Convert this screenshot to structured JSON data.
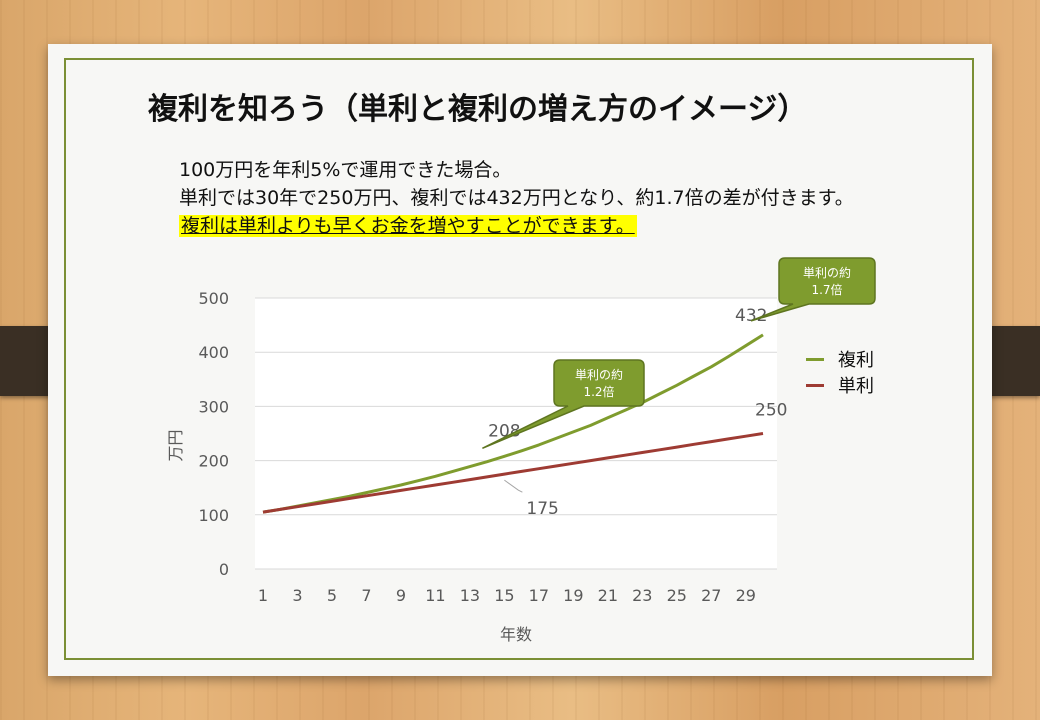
{
  "slide": {
    "title": "複利を知ろう（単利と複利の増え方のイメージ）",
    "line1": "100万円を年利5%で運用できた場合。",
    "line2": "単利では30年で250万円、複利では432万円となり、約1.7倍の差が付きます。",
    "line3": "複利は単利よりも早くお金を増やすことができます。"
  },
  "chart_data": {
    "type": "line",
    "xlabel": "年数",
    "ylabel": "万円",
    "ylim": [
      0,
      500
    ],
    "yticks": [
      "0",
      "100",
      "200",
      "300",
      "400",
      "500"
    ],
    "xticks": [
      "1",
      "3",
      "5",
      "7",
      "9",
      "11",
      "13",
      "15",
      "17",
      "19",
      "21",
      "23",
      "25",
      "27",
      "29"
    ],
    "x": [
      1,
      2,
      3,
      4,
      5,
      6,
      7,
      8,
      9,
      10,
      11,
      12,
      13,
      14,
      15,
      16,
      17,
      18,
      19,
      20,
      21,
      22,
      23,
      24,
      25,
      26,
      27,
      28,
      29,
      30
    ],
    "series": [
      {
        "name": "複利",
        "color": "#7f9c2e",
        "values": [
          105,
          110,
          116,
          122,
          128,
          134,
          141,
          148,
          155,
          163,
          171,
          180,
          189,
          198,
          208,
          218,
          229,
          241,
          253,
          265,
          279,
          293,
          307,
          323,
          339,
          356,
          373,
          392,
          412,
          432
        ]
      },
      {
        "name": "単利",
        "color": "#9e3b33",
        "values": [
          105,
          110,
          115,
          120,
          125,
          130,
          135,
          140,
          145,
          150,
          155,
          160,
          165,
          170,
          175,
          180,
          185,
          190,
          195,
          200,
          205,
          210,
          215,
          220,
          225,
          230,
          235,
          240,
          245,
          250
        ]
      }
    ],
    "data_labels": [
      {
        "series": "複利",
        "x": 30,
        "text": "432"
      },
      {
        "series": "単利",
        "x": 30,
        "text": "250"
      },
      {
        "series": "複利",
        "x": 15,
        "text": "208"
      },
      {
        "series": "単利",
        "x": 15,
        "text": "175"
      }
    ],
    "callouts": [
      {
        "line1": "単利の約",
        "line2": "1.2倍",
        "x": 15
      },
      {
        "line1": "単利の約",
        "line2": "1.7倍",
        "x": 30
      }
    ],
    "grid": true,
    "legend": "right"
  }
}
